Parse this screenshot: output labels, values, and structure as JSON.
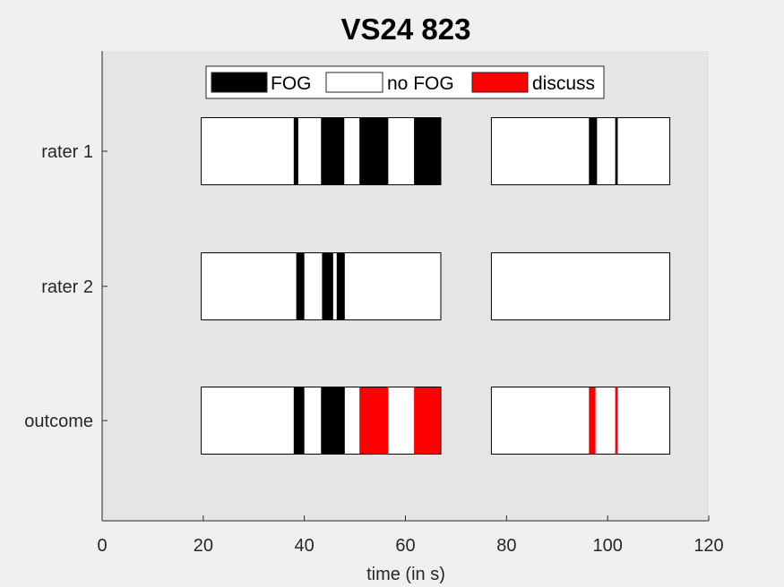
{
  "chart_data": {
    "type": "timeline",
    "title": "VS24 823",
    "xlabel": "time (in s)",
    "ylabel": "",
    "xlim": [
      0,
      120
    ],
    "xticks": [
      0,
      20,
      40,
      60,
      80,
      100,
      120
    ],
    "grid": false,
    "legend_position": "top-center",
    "legend": [
      {
        "label": "FOG",
        "color": "#000000"
      },
      {
        "label": "no FOG",
        "color": "#ffffff"
      },
      {
        "label": "discuss",
        "color": "#ff0000"
      }
    ],
    "rows": [
      {
        "name": "rater 1",
        "segments": [
          {
            "start": 19.6,
            "end": 67.0
          },
          {
            "start": 77.0,
            "end": 112.3
          }
        ],
        "events": [
          {
            "start": 37.9,
            "end": 38.8,
            "class": "FOG"
          },
          {
            "start": 43.3,
            "end": 47.9,
            "class": "FOG"
          },
          {
            "start": 50.9,
            "end": 56.6,
            "class": "FOG"
          },
          {
            "start": 61.7,
            "end": 67.0,
            "class": "FOG"
          },
          {
            "start": 96.3,
            "end": 97.9,
            "class": "FOG"
          },
          {
            "start": 101.5,
            "end": 102.0,
            "class": "FOG"
          }
        ]
      },
      {
        "name": "rater 2",
        "segments": [
          {
            "start": 19.6,
            "end": 67.0
          },
          {
            "start": 77.0,
            "end": 112.3
          }
        ],
        "events": [
          {
            "start": 38.4,
            "end": 40.0,
            "class": "FOG"
          },
          {
            "start": 43.5,
            "end": 45.7,
            "class": "FOG"
          },
          {
            "start": 46.4,
            "end": 48.0,
            "class": "FOG"
          }
        ]
      },
      {
        "name": "outcome",
        "segments": [
          {
            "start": 19.6,
            "end": 67.0
          },
          {
            "start": 77.0,
            "end": 112.3
          }
        ],
        "events": [
          {
            "start": 37.9,
            "end": 40.0,
            "class": "FOG"
          },
          {
            "start": 43.3,
            "end": 48.0,
            "class": "FOG"
          },
          {
            "start": 50.9,
            "end": 56.6,
            "class": "discuss"
          },
          {
            "start": 61.7,
            "end": 67.0,
            "class": "discuss"
          },
          {
            "start": 96.3,
            "end": 97.6,
            "class": "discuss"
          },
          {
            "start": 101.5,
            "end": 102.0,
            "class": "discuss"
          }
        ]
      }
    ]
  }
}
